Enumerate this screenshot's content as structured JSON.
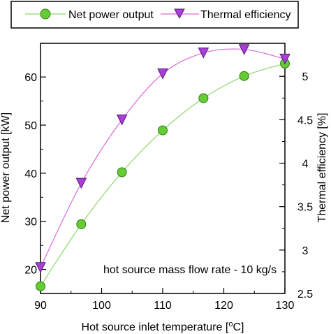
{
  "chart_data": {
    "type": "line",
    "xlabel": "Hot source inlet temperature [",
    "xlabel_unit_sup": "o",
    "xlabel_unit_tail": "C]",
    "ylabel_left": "Net power output [kW]",
    "ylabel_right": "Thermal efficiency [%]",
    "xlim": [
      90,
      130
    ],
    "ylim_left": [
      15,
      67
    ],
    "ylim_right": [
      2.5,
      5.38
    ],
    "x_ticks": [
      90,
      100,
      110,
      120,
      130
    ],
    "y_left_ticks": [
      20,
      30,
      40,
      50,
      60
    ],
    "y_right_ticks": [
      2.5,
      3,
      3.5,
      4,
      4.5,
      5
    ],
    "y_right_tick_labels": [
      "2.5",
      "3",
      "3.5",
      "4",
      "4.5",
      "5"
    ],
    "annotation": "hot source mass flow rate - 10 kg/s",
    "grid": false,
    "legend_position": "top",
    "series": [
      {
        "name": "Net power output",
        "axis": "left",
        "marker": "circle",
        "color": "#66cc33",
        "line_color": "#8ed870",
        "x": [
          90,
          96.67,
          103.33,
          110,
          116.67,
          123.33,
          130
        ],
        "y": [
          16.5,
          29.4,
          40.2,
          48.9,
          55.6,
          60.2,
          62.8
        ]
      },
      {
        "name": "Thermal efficiency",
        "axis": "right",
        "marker": "triangle-down",
        "color": "#a83fd6",
        "line_color": "#d96ad6",
        "x": [
          90,
          96.67,
          103.33,
          110,
          116.67,
          123.33,
          130
        ],
        "y": [
          2.8,
          3.77,
          4.5,
          5.03,
          5.27,
          5.31,
          5.2
        ]
      }
    ]
  }
}
